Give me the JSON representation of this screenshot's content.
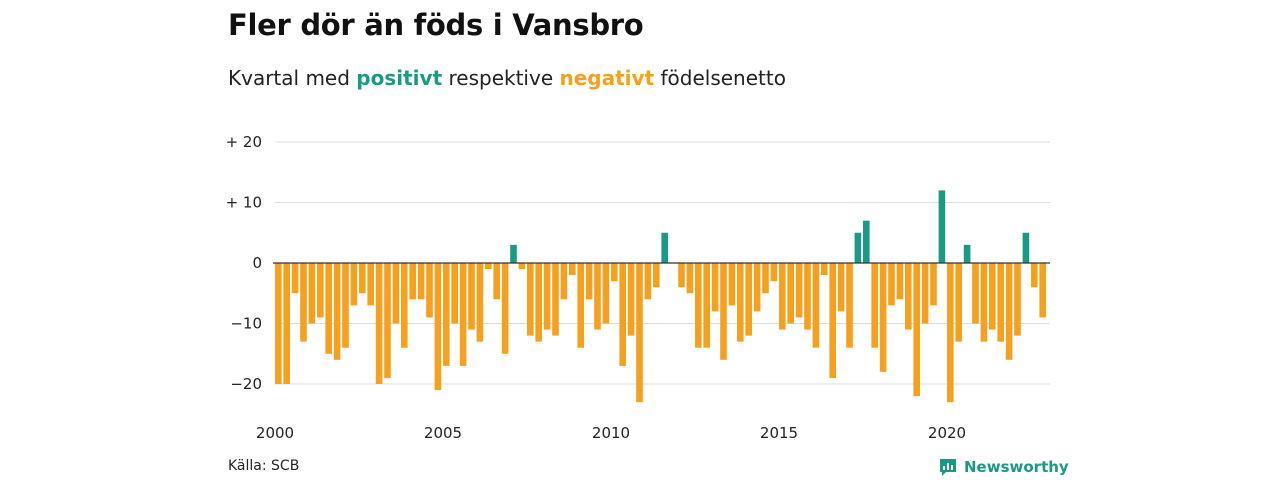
{
  "title": "Fler dör än föds i Vansbro",
  "subtitle": {
    "prefix": "Kvartal med",
    "positive": "positivt",
    "middle": "respektive",
    "negative": "negativt",
    "suffix": "födelsenetto"
  },
  "source": "Källa: SCB",
  "logo": {
    "text": "Newsworthy",
    "icon": "newsworthy-chart-bubble-icon"
  },
  "colors": {
    "positive": "#1a9985",
    "negative": "#f5a01e",
    "grid": "#dddddd",
    "zero": "#333333"
  },
  "chart_data": {
    "type": "bar",
    "title": "Fler dör än föds i Vansbro",
    "subtitle": "Kvartal med positivt respektive negativt födelsenetto",
    "x_start": "2000 Q1",
    "ylim": [
      -25,
      20
    ],
    "yticks": [
      {
        "value": 20,
        "label": "+ 20"
      },
      {
        "value": 10,
        "label": "+ 10"
      },
      {
        "value": 0,
        "label": "0"
      },
      {
        "value": -10,
        "label": "−10"
      },
      {
        "value": -20,
        "label": "−20"
      }
    ],
    "xticks": [
      "2000",
      "2005",
      "2010",
      "2015",
      "2020"
    ],
    "grid": true,
    "values": [
      -20,
      -20,
      -5,
      -13,
      -10,
      -9,
      -15,
      -16,
      -14,
      -7,
      -5,
      -7,
      -20,
      -19,
      -10,
      -14,
      -6,
      -6,
      -9,
      -21,
      -17,
      -10,
      -17,
      -11,
      -13,
      -1,
      -6,
      -15,
      3,
      -1,
      -12,
      -13,
      -11,
      -12,
      -6,
      -2,
      -14,
      -6,
      -11,
      -10,
      -3,
      -17,
      -12,
      -23,
      -6,
      -4,
      5,
      0,
      -4,
      -5,
      -14,
      -14,
      -8,
      -16,
      -7,
      -13,
      -12,
      -8,
      -5,
      -3,
      -11,
      -10,
      -9,
      -11,
      -14,
      -2,
      -19,
      -8,
      -14,
      5,
      7,
      -14,
      -18,
      -7,
      -6,
      -11,
      -22,
      -10,
      -7,
      12,
      -23,
      -13,
      3,
      -10,
      -13,
      -11,
      -13,
      -16,
      -12,
      5,
      -4,
      -9
    ]
  }
}
